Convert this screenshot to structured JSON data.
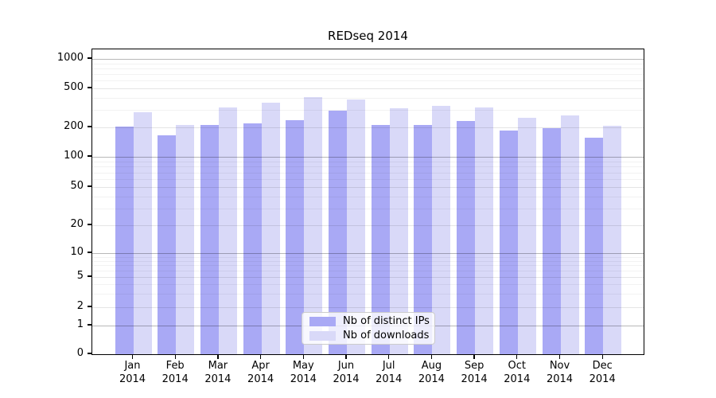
{
  "chart_data": {
    "type": "bar",
    "title": "REDseq 2014",
    "categories": [
      "Jan",
      "Feb",
      "Mar",
      "Apr",
      "May",
      "Jun",
      "Jul",
      "Aug",
      "Sep",
      "Oct",
      "Nov",
      "Dec"
    ],
    "x_tick_second_line": "2014",
    "series": [
      {
        "name": "Nb of distinct IPs",
        "color": "#a9a9f5",
        "values": [
          195,
          160,
          205,
          210,
          230,
          285,
          205,
          205,
          225,
          180,
          190,
          152
        ]
      },
      {
        "name": "Nb of downloads",
        "color": "#d9d9f8",
        "values": [
          275,
          205,
          310,
          345,
          390,
          370,
          300,
          320,
          310,
          240,
          255,
          200
        ]
      }
    ],
    "y_ticks": [
      0,
      1,
      2,
      5,
      10,
      20,
      50,
      100,
      200,
      500,
      1000
    ],
    "y_scale": "symlog",
    "ylim": [
      0,
      1000
    ],
    "grid": true,
    "legend_position": "bottom-center",
    "axis_color": "#000000",
    "background_color": "#ffffff"
  }
}
